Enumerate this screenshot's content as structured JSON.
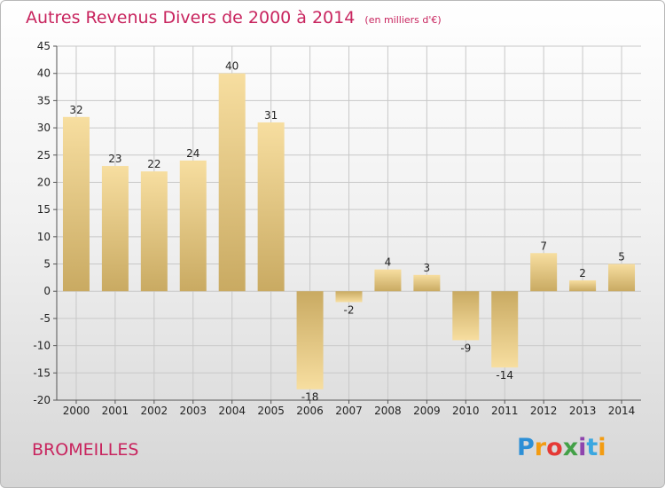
{
  "title": "Autres Revenus Divers de 2000 à 2014",
  "subtitle": "(en milliers d'€)",
  "commune": "BROMEILLES",
  "logo": {
    "letters": [
      "P",
      "r",
      "o",
      "x",
      "i",
      "t",
      "i"
    ],
    "colors": [
      "#2c8fd6",
      "#f39c12",
      "#e53935",
      "#43a047",
      "#8e44ad",
      "#3aa7e0",
      "#f39c12"
    ]
  },
  "colors": {
    "title": "#c8245e",
    "bar_light": "#f7dea0",
    "bar_dark": "#c9aa62",
    "grid": "#c8c8c8"
  },
  "chart_data": {
    "type": "bar",
    "title": "Autres Revenus Divers de 2000 à 2014",
    "subtitle": "(en milliers d'€)",
    "xlabel": "",
    "ylabel": "",
    "categories": [
      "2000",
      "2001",
      "2002",
      "2003",
      "2004",
      "2005",
      "2006",
      "2007",
      "2008",
      "2009",
      "2010",
      "2011",
      "2012",
      "2013",
      "2014"
    ],
    "values": [
      32,
      23,
      22,
      24,
      40,
      31,
      -18,
      -2,
      4,
      3,
      -9,
      -14,
      7,
      2,
      5
    ],
    "ylim": [
      -20,
      45
    ],
    "yticks": [
      -20,
      -15,
      -10,
      -5,
      0,
      5,
      10,
      15,
      20,
      25,
      30,
      35,
      40,
      45
    ],
    "grid": true,
    "legend": "none"
  }
}
